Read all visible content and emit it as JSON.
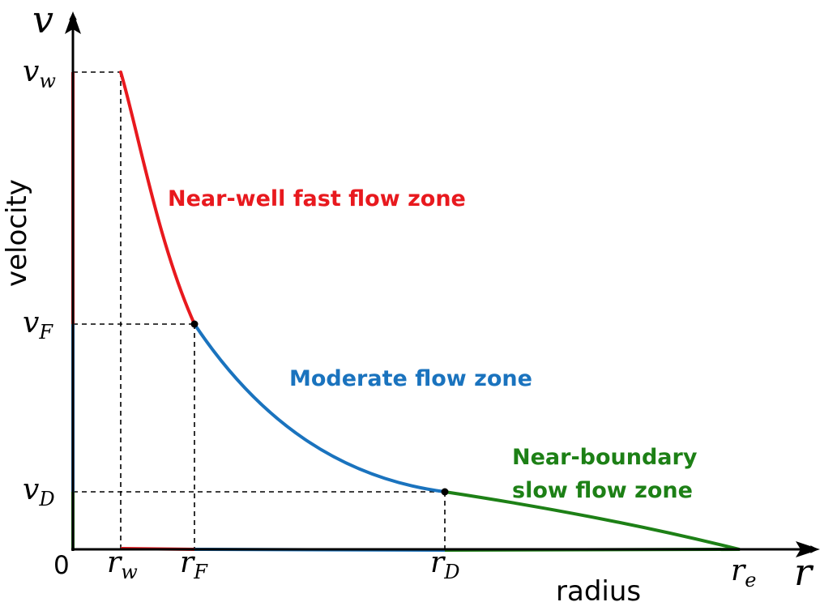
{
  "colors": {
    "near_well": "#e8191e",
    "moderate": "#1a73be",
    "near_boundary": "#1d8016",
    "axis": "#000000"
  },
  "axes": {
    "y_symbol_main": "v",
    "x_symbol_main": "r",
    "y_title": "velocity",
    "x_title": "radius",
    "origin": "0"
  },
  "ticks": {
    "vw": {
      "main": "v",
      "sub": "w"
    },
    "vF": {
      "main": "v",
      "sub": "F"
    },
    "vD": {
      "main": "v",
      "sub": "D"
    },
    "rw": {
      "main": "r",
      "sub": "w"
    },
    "rF": {
      "main": "r",
      "sub": "F"
    },
    "rD": {
      "main": "r",
      "sub": "D"
    },
    "re": {
      "main": "r",
      "sub": "e"
    }
  },
  "zones": {
    "near_well": {
      "lines": [
        "Near-well fast flow zone"
      ]
    },
    "moderate": {
      "lines": [
        "Moderate flow zone"
      ]
    },
    "near_boundary": {
      "lines": [
        "Near-boundary",
        "slow flow zone"
      ]
    }
  }
}
